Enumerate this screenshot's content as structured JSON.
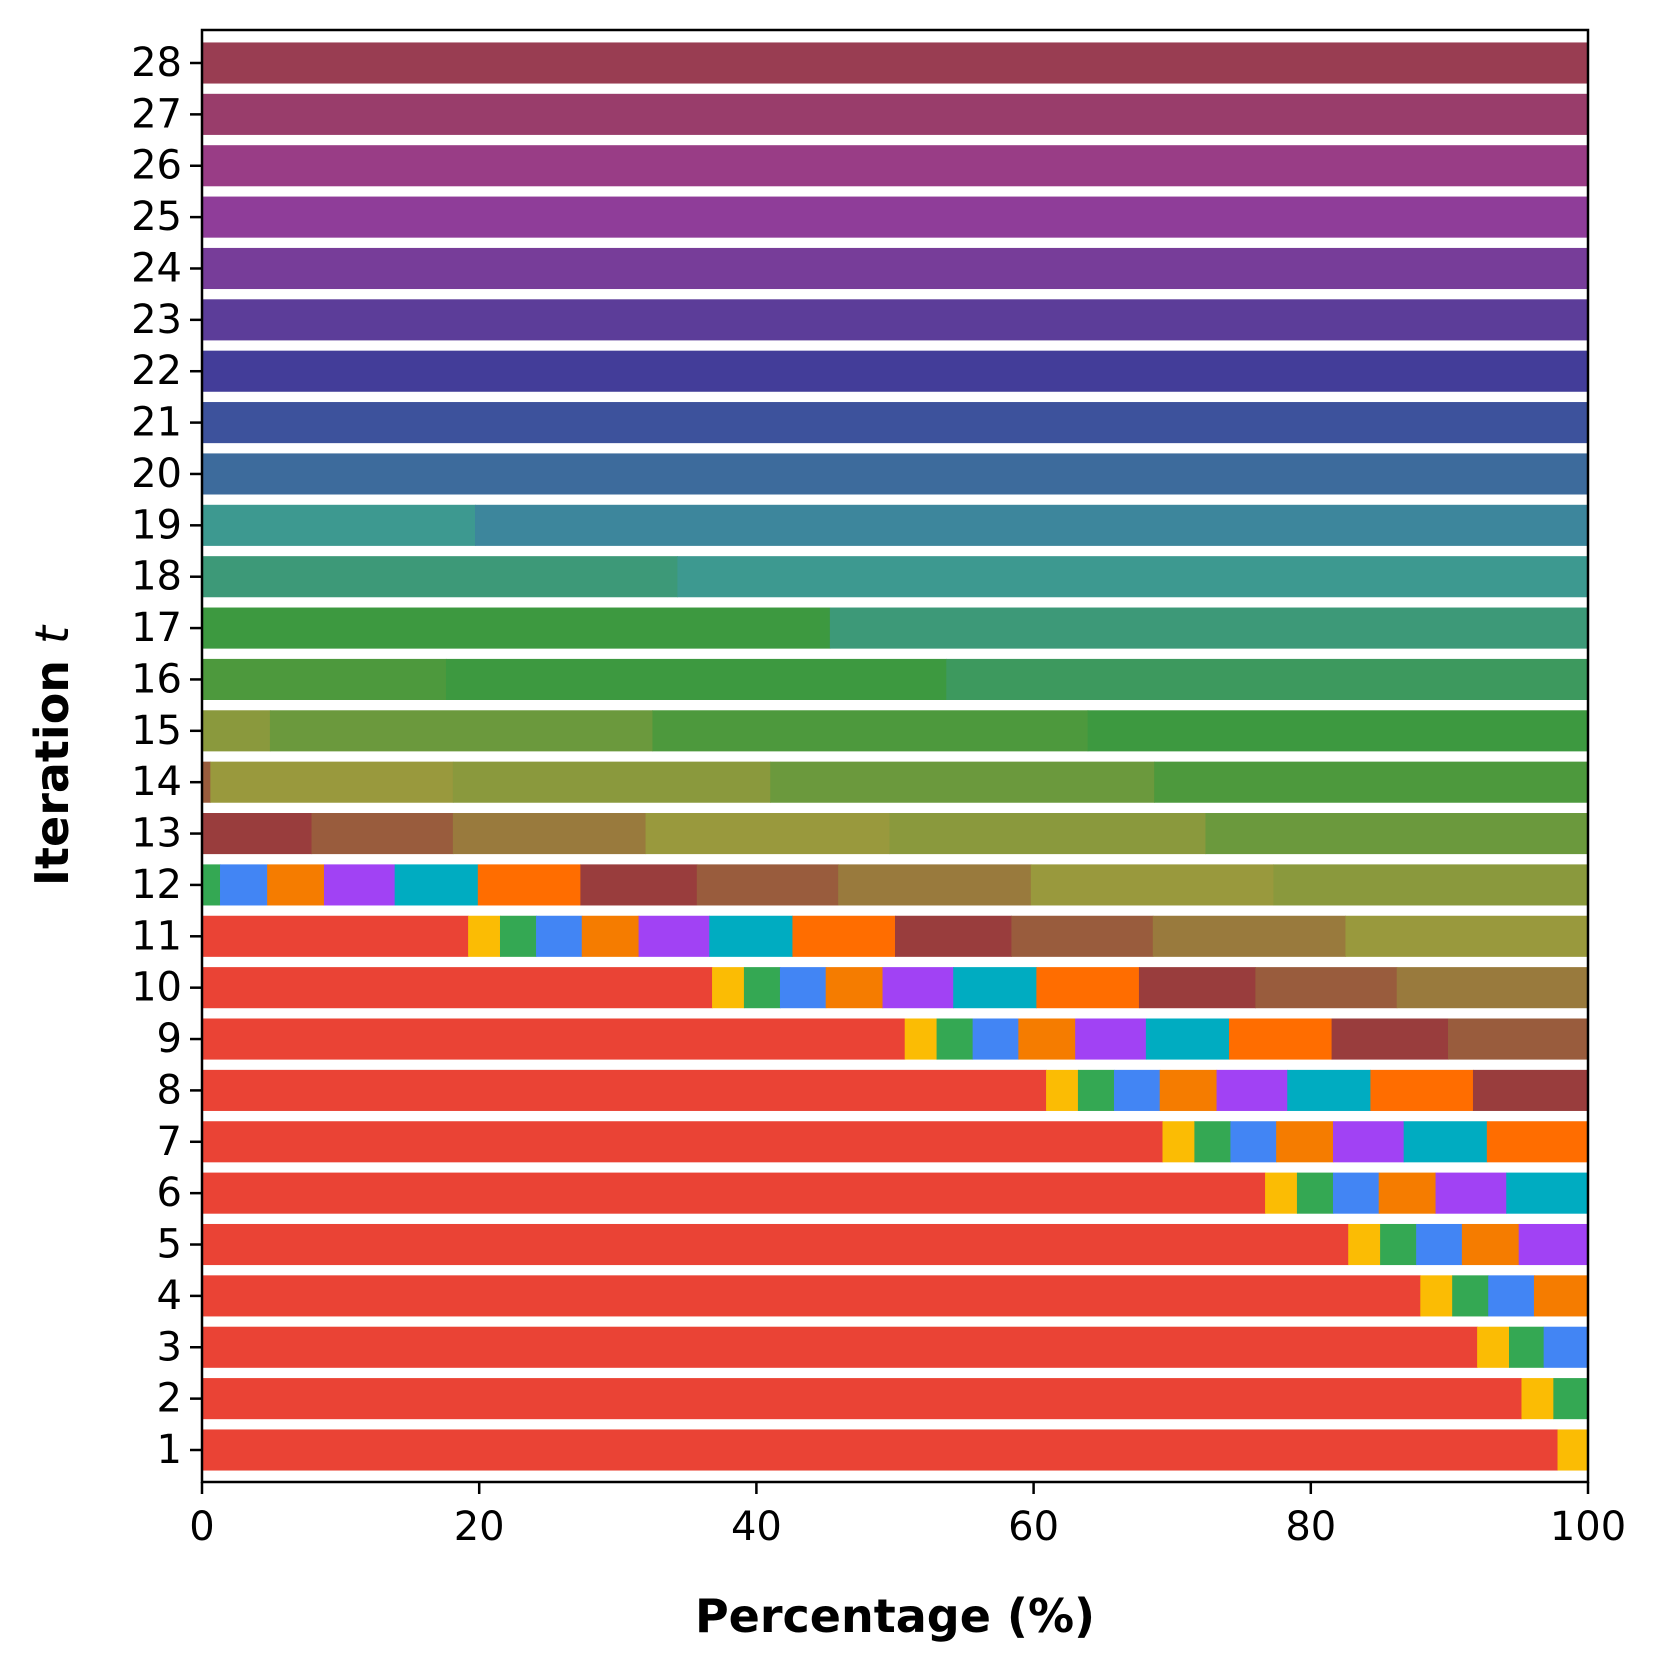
{
  "chart_data": {
    "type": "bar",
    "orientation": "horizontal",
    "stacked": true,
    "xlabel": "Percentage (%)",
    "ylabel": "Iteration",
    "ylabel_var": "t",
    "xlim": [
      0,
      100
    ],
    "xticks": [
      "0",
      "20",
      "40",
      "60",
      "80",
      "100"
    ],
    "xtick_values": [
      0,
      20,
      40,
      60,
      80,
      100
    ],
    "categories": [
      "1",
      "2",
      "3",
      "4",
      "5",
      "6",
      "7",
      "8",
      "9",
      "10",
      "11",
      "12",
      "13",
      "14",
      "15",
      "16",
      "17",
      "18",
      "19",
      "20",
      "21",
      "22",
      "23",
      "24",
      "25",
      "26",
      "27",
      "28"
    ],
    "rows": [
      {
        "label": "1",
        "segments": [
          {
            "value": 97.8,
            "color": "#ea4335"
          },
          {
            "value": 2.2,
            "color": "#fbbc04"
          }
        ]
      },
      {
        "label": "2",
        "segments": [
          {
            "value": 95.2,
            "color": "#ea4335"
          },
          {
            "value": 2.3,
            "color": "#fbbc04"
          },
          {
            "value": 2.5,
            "color": "#34a853"
          }
        ]
      },
      {
        "label": "3",
        "segments": [
          {
            "value": 92.0,
            "color": "#ea4335"
          },
          {
            "value": 2.3,
            "color": "#fbbc04"
          },
          {
            "value": 2.5,
            "color": "#34a853"
          },
          {
            "value": 3.2,
            "color": "#4285f4"
          }
        ]
      },
      {
        "label": "4",
        "segments": [
          {
            "value": 87.9,
            "color": "#ea4335"
          },
          {
            "value": 2.3,
            "color": "#fbbc04"
          },
          {
            "value": 2.6,
            "color": "#34a853"
          },
          {
            "value": 3.3,
            "color": "#4285f4"
          },
          {
            "value": 3.9,
            "color": "#f57c00"
          }
        ]
      },
      {
        "label": "5",
        "segments": [
          {
            "value": 82.7,
            "color": "#ea4335"
          },
          {
            "value": 2.3,
            "color": "#fbbc04"
          },
          {
            "value": 2.6,
            "color": "#34a853"
          },
          {
            "value": 3.3,
            "color": "#4285f4"
          },
          {
            "value": 4.1,
            "color": "#f57c00"
          },
          {
            "value": 5.0,
            "color": "#a142f4"
          }
        ]
      },
      {
        "label": "6",
        "segments": [
          {
            "value": 76.7,
            "color": "#ea4335"
          },
          {
            "value": 2.3,
            "color": "#fbbc04"
          },
          {
            "value": 2.6,
            "color": "#34a853"
          },
          {
            "value": 3.3,
            "color": "#4285f4"
          },
          {
            "value": 4.1,
            "color": "#f57c00"
          },
          {
            "value": 5.1,
            "color": "#a142f4"
          },
          {
            "value": 5.9,
            "color": "#00acc1"
          }
        ]
      },
      {
        "label": "7",
        "segments": [
          {
            "value": 69.3,
            "color": "#ea4335"
          },
          {
            "value": 2.3,
            "color": "#fbbc04"
          },
          {
            "value": 2.6,
            "color": "#34a853"
          },
          {
            "value": 3.3,
            "color": "#4285f4"
          },
          {
            "value": 4.1,
            "color": "#f57c00"
          },
          {
            "value": 5.1,
            "color": "#a142f4"
          },
          {
            "value": 6.0,
            "color": "#00acc1"
          },
          {
            "value": 7.3,
            "color": "#ff6d00"
          }
        ]
      },
      {
        "label": "8",
        "segments": [
          {
            "value": 60.9,
            "color": "#ea4335"
          },
          {
            "value": 2.3,
            "color": "#fbbc04"
          },
          {
            "value": 2.6,
            "color": "#34a853"
          },
          {
            "value": 3.3,
            "color": "#4285f4"
          },
          {
            "value": 4.1,
            "color": "#f57c00"
          },
          {
            "value": 5.1,
            "color": "#a142f4"
          },
          {
            "value": 6.0,
            "color": "#00acc1"
          },
          {
            "value": 7.4,
            "color": "#ff6d00"
          },
          {
            "value": 8.3,
            "color": "#993d3d"
          }
        ]
      },
      {
        "label": "9",
        "segments": [
          {
            "value": 50.7,
            "color": "#ea4335"
          },
          {
            "value": 2.3,
            "color": "#fbbc04"
          },
          {
            "value": 2.6,
            "color": "#34a853"
          },
          {
            "value": 3.3,
            "color": "#4285f4"
          },
          {
            "value": 4.1,
            "color": "#f57c00"
          },
          {
            "value": 5.1,
            "color": "#a142f4"
          },
          {
            "value": 6.0,
            "color": "#00acc1"
          },
          {
            "value": 7.4,
            "color": "#ff6d00"
          },
          {
            "value": 8.4,
            "color": "#993d3d"
          },
          {
            "value": 10.1,
            "color": "#995c3d"
          }
        ]
      },
      {
        "label": "10",
        "segments": [
          {
            "value": 36.8,
            "color": "#ea4335"
          },
          {
            "value": 2.3,
            "color": "#fbbc04"
          },
          {
            "value": 2.6,
            "color": "#34a853"
          },
          {
            "value": 3.3,
            "color": "#4285f4"
          },
          {
            "value": 4.1,
            "color": "#f57c00"
          },
          {
            "value": 5.1,
            "color": "#a142f4"
          },
          {
            "value": 6.0,
            "color": "#00acc1"
          },
          {
            "value": 7.4,
            "color": "#ff6d00"
          },
          {
            "value": 8.4,
            "color": "#993d3d"
          },
          {
            "value": 10.2,
            "color": "#995c3d"
          },
          {
            "value": 13.8,
            "color": "#997a3d"
          }
        ]
      },
      {
        "label": "11",
        "segments": [
          {
            "value": 19.2,
            "color": "#ea4335"
          },
          {
            "value": 2.3,
            "color": "#fbbc04"
          },
          {
            "value": 2.6,
            "color": "#34a853"
          },
          {
            "value": 3.3,
            "color": "#4285f4"
          },
          {
            "value": 4.1,
            "color": "#f57c00"
          },
          {
            "value": 5.1,
            "color": "#a142f4"
          },
          {
            "value": 6.0,
            "color": "#00acc1"
          },
          {
            "value": 7.4,
            "color": "#ff6d00"
          },
          {
            "value": 8.4,
            "color": "#993d3d"
          },
          {
            "value": 10.2,
            "color": "#995c3d"
          },
          {
            "value": 13.9,
            "color": "#997a3d"
          },
          {
            "value": 17.5,
            "color": "#99993d"
          }
        ]
      },
      {
        "label": "12",
        "segments": [
          {
            "value": 1.3,
            "color": "#34a853"
          },
          {
            "value": 3.4,
            "color": "#4285f4"
          },
          {
            "value": 4.1,
            "color": "#f57c00"
          },
          {
            "value": 5.1,
            "color": "#a142f4"
          },
          {
            "value": 6.0,
            "color": "#00acc1"
          },
          {
            "value": 7.4,
            "color": "#ff6d00"
          },
          {
            "value": 8.4,
            "color": "#993d3d"
          },
          {
            "value": 10.2,
            "color": "#995c3d"
          },
          {
            "value": 13.9,
            "color": "#997a3d"
          },
          {
            "value": 17.5,
            "color": "#99993d"
          },
          {
            "value": 22.7,
            "color": "#8a993d"
          }
        ]
      },
      {
        "label": "13",
        "segments": [
          {
            "value": 7.9,
            "color": "#993d3d"
          },
          {
            "value": 10.2,
            "color": "#995c3d"
          },
          {
            "value": 13.9,
            "color": "#997a3d"
          },
          {
            "value": 17.6,
            "color": "#99993d"
          },
          {
            "value": 22.8,
            "color": "#8a993d"
          },
          {
            "value": 27.6,
            "color": "#6b993d"
          }
        ]
      },
      {
        "label": "14",
        "segments": [
          {
            "value": 0.6,
            "color": "#995c3d"
          },
          {
            "value": 17.5,
            "color": "#99993d"
          },
          {
            "value": 22.9,
            "color": "#8a993d"
          },
          {
            "value": 27.7,
            "color": "#6b993d"
          },
          {
            "value": 31.3,
            "color": "#4d993d"
          }
        ]
      },
      {
        "label": "15",
        "segments": [
          {
            "value": 4.9,
            "color": "#8a993d"
          },
          {
            "value": 27.6,
            "color": "#6b993d"
          },
          {
            "value": 31.4,
            "color": "#4d993d"
          },
          {
            "value": 36.1,
            "color": "#3d9940"
          }
        ]
      },
      {
        "label": "16",
        "segments": [
          {
            "value": 17.6,
            "color": "#4d993d"
          },
          {
            "value": 36.1,
            "color": "#3d9940"
          },
          {
            "value": 46.3,
            "color": "#3d995e"
          }
        ]
      },
      {
        "label": "17",
        "segments": [
          {
            "value": 45.3,
            "color": "#3d9940"
          },
          {
            "value": 54.7,
            "color": "#3d9978"
          }
        ]
      },
      {
        "label": "18",
        "segments": [
          {
            "value": 34.3,
            "color": "#3d9978"
          },
          {
            "value": 65.7,
            "color": "#3d9990"
          }
        ]
      },
      {
        "label": "19",
        "segments": [
          {
            "value": 19.7,
            "color": "#3d9990"
          },
          {
            "value": 80.3,
            "color": "#3d869c"
          }
        ]
      },
      {
        "label": "20",
        "segments": [
          {
            "value": 100.0,
            "color": "#3d6b9c"
          }
        ]
      },
      {
        "label": "21",
        "segments": [
          {
            "value": 100.0,
            "color": "#3d529c"
          }
        ]
      },
      {
        "label": "22",
        "segments": [
          {
            "value": 100.0,
            "color": "#433d99"
          }
        ]
      },
      {
        "label": "23",
        "segments": [
          {
            "value": 100.0,
            "color": "#5c3d99"
          }
        ]
      },
      {
        "label": "24",
        "segments": [
          {
            "value": 100.0,
            "color": "#773d99"
          }
        ]
      },
      {
        "label": "25",
        "segments": [
          {
            "value": 100.0,
            "color": "#8f3d99"
          }
        ]
      },
      {
        "label": "26",
        "segments": [
          {
            "value": 100.0,
            "color": "#993d86"
          }
        ]
      },
      {
        "label": "27",
        "segments": [
          {
            "value": 100.0,
            "color": "#993d6b"
          }
        ]
      },
      {
        "label": "28",
        "segments": [
          {
            "value": 100.0,
            "color": "#993d52"
          }
        ]
      }
    ]
  }
}
